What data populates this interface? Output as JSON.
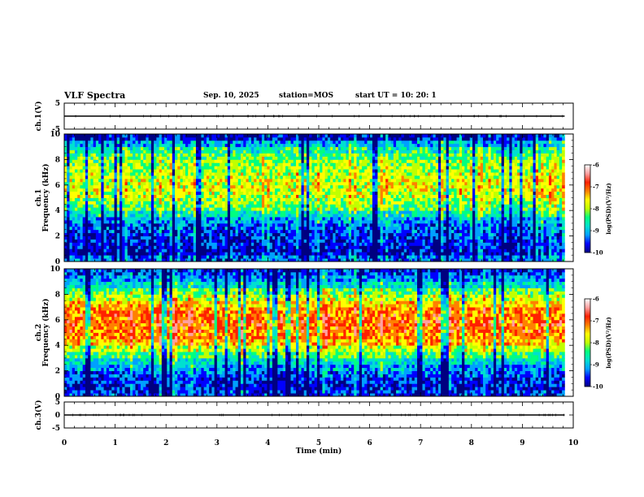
{
  "header": {
    "title": "VLF Spectra",
    "date": "Sep. 10, 2025",
    "station": "station=MOS",
    "start": "start UT = 10: 20: 1"
  },
  "colors": {
    "scale": [
      "#000080",
      "#0000ff",
      "#00a0ff",
      "#00e0d0",
      "#00ff80",
      "#c0ff00",
      "#ffff00",
      "#ff8000",
      "#ff2000",
      "#ffa0a0",
      "#ffffff"
    ]
  },
  "chart_data": [
    {
      "type": "line",
      "name": "ch1-waveform",
      "ylabel": "ch.1(V)",
      "ylim": [
        -5,
        5
      ],
      "yticks": [
        5,
        -5
      ],
      "x": [
        0,
        2,
        4,
        6,
        8,
        9.83
      ],
      "values": [
        0,
        0,
        0,
        0,
        0,
        0
      ],
      "xlim": [
        0,
        10
      ]
    },
    {
      "type": "heatmap",
      "name": "ch1-spectrogram",
      "ylabel": "ch.1\nFrequency (kHz)",
      "ylim": [
        0,
        10
      ],
      "yticks": [
        0,
        2,
        4,
        6,
        8,
        10
      ],
      "xlim": [
        0,
        10
      ],
      "data_end_min": 9.83,
      "profile_khz": [
        0.25,
        0.75,
        1.25,
        1.75,
        2.25,
        2.75,
        3.25,
        3.75,
        4.25,
        4.75,
        5.25,
        5.75,
        6.25,
        6.75,
        7.25,
        7.75,
        8.25,
        8.75,
        9.25,
        9.75
      ],
      "profile_level": [
        -9.2,
        -9.6,
        -9.5,
        -9.4,
        -9.3,
        -9.2,
        -8.9,
        -8.5,
        -8.1,
        -7.9,
        -7.7,
        -7.6,
        -7.6,
        -7.7,
        -7.8,
        -7.9,
        -8.1,
        -8.4,
        -8.9,
        -9.6
      ],
      "colorbar": {
        "label": "log(PSD)(V²/Hz)",
        "ticks": [
          -6,
          -7,
          -8,
          -9,
          -10
        ],
        "range": [
          -10,
          -6
        ]
      }
    },
    {
      "type": "heatmap",
      "name": "ch2-spectrogram",
      "ylabel": "ch.2\nFrequency (kHz)",
      "ylim": [
        0,
        10
      ],
      "yticks": [
        0,
        2,
        4,
        6,
        8,
        10
      ],
      "xlim": [
        0,
        10
      ],
      "data_end_min": 9.83,
      "profile_khz": [
        0.25,
        0.75,
        1.25,
        1.75,
        2.25,
        2.75,
        3.25,
        3.75,
        4.25,
        4.75,
        5.25,
        5.75,
        6.25,
        6.75,
        7.25,
        7.75,
        8.25,
        8.75,
        9.25,
        9.75
      ],
      "profile_level": [
        -9.3,
        -9.5,
        -9.4,
        -9.2,
        -8.9,
        -8.6,
        -8.2,
        -7.7,
        -7.2,
        -7.0,
        -6.9,
        -6.8,
        -6.9,
        -7.0,
        -7.3,
        -7.7,
        -8.1,
        -8.6,
        -9.0,
        -9.3
      ],
      "colorbar": {
        "label": "log(PSD)(V²/Hz)",
        "ticks": [
          -6,
          -7,
          -8,
          -9,
          -10
        ],
        "range": [
          -10,
          -6
        ]
      }
    },
    {
      "type": "line",
      "name": "ch3-waveform",
      "ylabel": "ch.3(V)",
      "ylim": [
        -5,
        5
      ],
      "yticks": [
        5,
        0,
        -5
      ],
      "x": [
        0,
        2,
        4,
        6,
        8,
        9.83
      ],
      "values": [
        0,
        0,
        0,
        0,
        0,
        0
      ],
      "xlim": [
        0,
        10
      ],
      "xlabel": "Time (min)",
      "xticks": [
        0,
        1,
        2,
        3,
        4,
        5,
        6,
        7,
        8,
        9,
        10
      ]
    }
  ]
}
